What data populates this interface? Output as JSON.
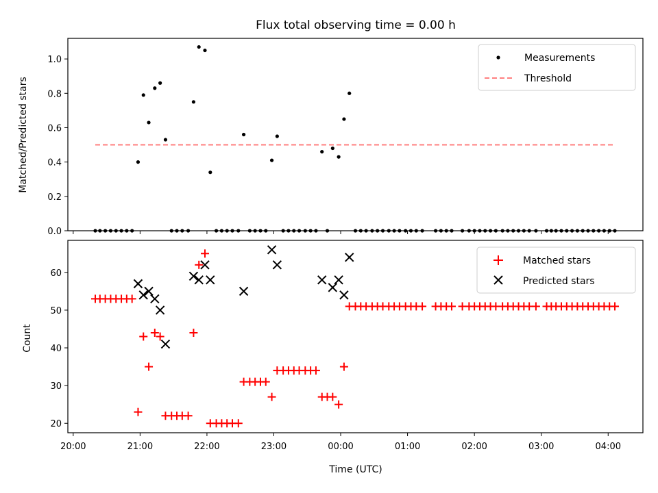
{
  "chart_data": [
    {
      "type": "scatter",
      "title": "Flux total observing time = 0.00 h",
      "xlabel": "",
      "ylabel": "Matched/Predicted stars",
      "ylim": [
        0,
        1.12
      ],
      "yticks": [
        "0.0",
        "0.2",
        "0.4",
        "0.6",
        "0.8",
        "1.0"
      ],
      "legend_position": "top-right",
      "colors": {
        "measurements": "#000000",
        "threshold": "#ff7f7f"
      },
      "series": [
        {
          "name": "Measurements",
          "marker": "dot",
          "x": [
            20.33,
            20.4,
            20.48,
            20.56,
            20.64,
            20.72,
            20.8,
            20.88,
            20.97,
            21.05,
            21.13,
            21.22,
            21.3,
            21.38,
            21.47,
            21.55,
            21.63,
            21.72,
            21.8,
            21.88,
            21.97,
            22.05,
            22.14,
            22.22,
            22.3,
            22.38,
            22.47,
            22.55,
            22.64,
            22.72,
            22.8,
            22.88,
            22.97,
            23.05,
            23.14,
            23.22,
            23.3,
            23.38,
            23.47,
            23.55,
            23.63,
            23.72,
            23.8,
            23.88,
            23.97,
            24.05,
            24.13,
            24.22,
            24.3,
            24.38,
            24.47,
            24.55,
            24.63,
            24.72,
            24.8,
            24.88,
            24.97,
            25.05,
            25.13,
            25.22,
            25.42,
            25.5,
            25.58,
            25.66,
            25.82,
            25.92,
            26.0,
            26.08,
            26.16,
            26.24,
            26.32,
            26.42,
            26.5,
            26.58,
            26.66,
            26.74,
            26.82,
            26.92,
            27.08,
            27.15,
            27.22,
            27.3,
            27.38,
            27.46,
            27.54,
            27.62,
            27.7,
            27.78,
            27.86,
            27.94,
            28.02,
            28.1
          ],
          "y": [
            0,
            0,
            0,
            0,
            0,
            0,
            0,
            0,
            0.4,
            0.79,
            0.63,
            0.83,
            0.86,
            0.53,
            0,
            0,
            0,
            0,
            0.75,
            1.07,
            1.05,
            0.34,
            0,
            0,
            0,
            0,
            0,
            0.56,
            0,
            0,
            0,
            0,
            0.41,
            0.55,
            0,
            0,
            0,
            0,
            0,
            0,
            0,
            0.46,
            0,
            0.48,
            0.43,
            0.65,
            0.8,
            0,
            0,
            0,
            0,
            0,
            0,
            0,
            0,
            0,
            0,
            0,
            0,
            0,
            0,
            0,
            0,
            0,
            0,
            0,
            0,
            0,
            0,
            0,
            0,
            0,
            0,
            0,
            0,
            0,
            0,
            0,
            0,
            0,
            0,
            0,
            0,
            0,
            0,
            0,
            0,
            0,
            0,
            0,
            0,
            0
          ]
        },
        {
          "name": "Threshold",
          "style": "dashed",
          "x": [
            20.33,
            28.1
          ],
          "y": [
            0.5,
            0.5
          ]
        }
      ]
    },
    {
      "type": "scatter",
      "title": "",
      "xlabel": "Time (UTC)",
      "ylabel": "Count",
      "ylim": [
        17.5,
        68.5
      ],
      "xlim": [
        19.92,
        28.52
      ],
      "xticks": [
        "20:00",
        "21:00",
        "22:00",
        "23:00",
        "00:00",
        "01:00",
        "02:00",
        "03:00",
        "04:00"
      ],
      "yticks": [
        "20",
        "30",
        "40",
        "50",
        "60"
      ],
      "legend_position": "top-right",
      "colors": {
        "matched": "#ff0000",
        "predicted": "#000000"
      },
      "series": [
        {
          "name": "Matched stars",
          "marker": "plus",
          "x": [
            20.33,
            20.4,
            20.48,
            20.56,
            20.64,
            20.72,
            20.8,
            20.88,
            20.97,
            21.05,
            21.13,
            21.22,
            21.3,
            21.38,
            21.47,
            21.55,
            21.63,
            21.72,
            21.8,
            21.88,
            21.97,
            22.05,
            22.14,
            22.22,
            22.3,
            22.38,
            22.47,
            22.55,
            22.64,
            22.72,
            22.8,
            22.88,
            22.97,
            23.05,
            23.14,
            23.22,
            23.3,
            23.38,
            23.47,
            23.55,
            23.63,
            23.72,
            23.8,
            23.88,
            23.97,
            24.05,
            24.13,
            24.22,
            24.3,
            24.38,
            24.47,
            24.55,
            24.63,
            24.72,
            24.8,
            24.88,
            24.97,
            25.05,
            25.13,
            25.22,
            25.42,
            25.5,
            25.58,
            25.66,
            25.82,
            25.92,
            26.0,
            26.08,
            26.16,
            26.24,
            26.32,
            26.42,
            26.5,
            26.58,
            26.66,
            26.74,
            26.82,
            26.92,
            27.08,
            27.15,
            27.22,
            27.3,
            27.38,
            27.46,
            27.54,
            27.62,
            27.7,
            27.78,
            27.86,
            27.94,
            28.02,
            28.1
          ],
          "y": [
            53,
            53,
            53,
            53,
            53,
            53,
            53,
            53,
            23,
            43,
            35,
            44,
            43,
            22,
            22,
            22,
            22,
            22,
            44,
            62,
            65,
            20,
            20,
            20,
            20,
            20,
            20,
            31,
            31,
            31,
            31,
            31,
            27,
            34,
            34,
            34,
            34,
            34,
            34,
            34,
            34,
            27,
            27,
            27,
            25,
            35,
            51,
            51,
            51,
            51,
            51,
            51,
            51,
            51,
            51,
            51,
            51,
            51,
            51,
            51,
            51,
            51,
            51,
            51,
            51,
            51,
            51,
            51,
            51,
            51,
            51,
            51,
            51,
            51,
            51,
            51,
            51,
            51,
            51,
            51,
            51,
            51,
            51,
            51,
            51,
            51,
            51,
            51,
            51,
            51,
            51,
            51
          ]
        },
        {
          "name": "Predicted stars",
          "marker": "x",
          "x": [
            20.97,
            21.05,
            21.13,
            21.22,
            21.3,
            21.38,
            21.8,
            21.88,
            21.97,
            22.05,
            22.55,
            22.97,
            23.05,
            23.72,
            23.88,
            23.97,
            24.05,
            24.13
          ],
          "y": [
            57,
            54,
            55,
            53,
            50,
            41,
            59,
            58,
            62,
            58,
            55,
            66,
            62,
            58,
            56,
            58,
            54,
            64
          ]
        }
      ]
    }
  ]
}
